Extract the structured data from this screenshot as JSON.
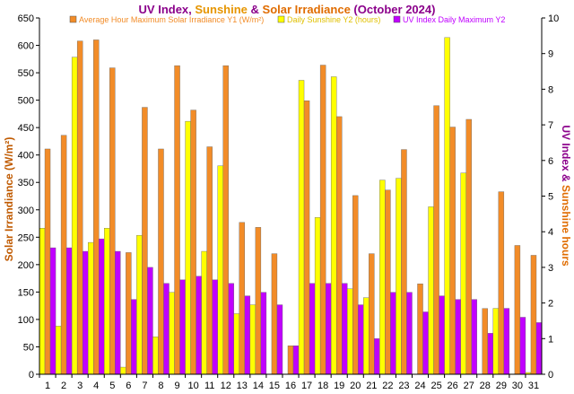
{
  "chart_data": {
    "type": "bar",
    "title": {
      "part1": "UV Index",
      "sep1": ", ",
      "part2": "Sunshine",
      "sep2": " & ",
      "part3": "Solar Irradiance",
      "part4": " (October 2024)"
    },
    "ylabel_left": "Solar Irrandiance (W/m²)",
    "ylabel_right": {
      "part1": "UV Index",
      "sep": " & ",
      "part2": "Sunshine hours"
    },
    "ylim_left": [
      0,
      650
    ],
    "ylim_right": [
      0,
      10
    ],
    "left_ticks": [
      "0",
      "50",
      "100",
      "150",
      "200",
      "250",
      "300",
      "350",
      "400",
      "450",
      "500",
      "550",
      "600",
      "650"
    ],
    "right_ticks": [
      "0",
      "1",
      "2",
      "3",
      "4",
      "5",
      "6",
      "7",
      "8",
      "9",
      "10"
    ],
    "categories": [
      "1",
      "2",
      "3",
      "4",
      "5",
      "6",
      "7",
      "8",
      "9",
      "10",
      "11",
      "12",
      "13",
      "14",
      "15",
      "16",
      "17",
      "18",
      "19",
      "20",
      "21",
      "22",
      "23",
      "24",
      "25",
      "26",
      "27",
      "28",
      "29",
      "30",
      "31"
    ],
    "colors": {
      "irradiance": "#F28C28",
      "sunshine": "#FFFF00",
      "uv": "#C000FF",
      "title_uv": "#8B008B",
      "title_sunshine": "#E69500",
      "title_irradiance": "#E06C00",
      "right_axis": "#8B008B",
      "left_axis_title": "#C05A00"
    },
    "series": [
      {
        "name": "Average Hour Maximum Solar Irradiance Y1 (W/m²)",
        "axis": "left",
        "values": [
          411,
          436,
          608,
          610,
          559,
          222,
          487,
          411,
          563,
          482,
          415,
          563,
          277,
          268,
          220,
          52,
          499,
          564,
          470,
          326,
          220,
          336,
          410,
          165,
          490,
          451,
          465,
          120,
          333,
          235,
          217
        ]
      },
      {
        "name": "Daily Sunshine Y2 (hours)",
        "axis": "right",
        "values": [
          4.1,
          1.35,
          8.9,
          3.7,
          4.1,
          0.2,
          3.9,
          1.05,
          2.3,
          7.1,
          3.45,
          5.85,
          1.7,
          1.95,
          0,
          0,
          8.25,
          4.4,
          8.35,
          2.4,
          2.15,
          5.45,
          5.5,
          0,
          4.7,
          9.45,
          5.65,
          0,
          1.85,
          0,
          0.05
        ]
      },
      {
        "name": "UV Index Daily Maximum Y2",
        "axis": "right",
        "values": [
          3.55,
          3.55,
          3.45,
          3.8,
          3.45,
          2.1,
          3.0,
          2.55,
          2.65,
          2.75,
          2.65,
          2.55,
          2.2,
          2.3,
          1.95,
          0.8,
          2.55,
          2.55,
          2.55,
          1.95,
          1.0,
          2.3,
          2.3,
          1.75,
          2.2,
          2.1,
          2.1,
          1.15,
          1.85,
          1.6,
          1.45
        ]
      }
    ],
    "legend_position": "top",
    "grid": false
  }
}
